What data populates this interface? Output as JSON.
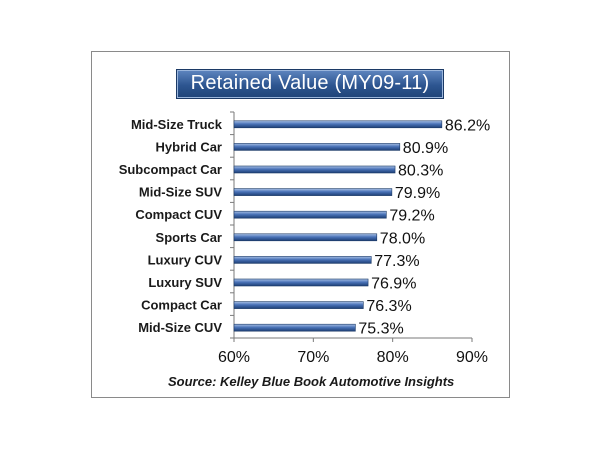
{
  "chart_data": {
    "type": "bar",
    "orientation": "horizontal",
    "title": "Retained Value (MY09-11)",
    "source": "Source: Kelley Blue Book Automotive Insights",
    "categories": [
      "Mid-Size Truck",
      "Hybrid Car",
      "Subcompact Car",
      "Mid-Size SUV",
      "Compact CUV",
      "Sports Car",
      "Luxury CUV",
      "Luxury SUV",
      "Compact Car",
      "Mid-Size CUV"
    ],
    "values": [
      86.2,
      80.9,
      80.3,
      79.9,
      79.2,
      78.0,
      77.3,
      76.9,
      76.3,
      75.3
    ],
    "value_labels": [
      "86.2%",
      "80.9%",
      "80.3%",
      "79.9%",
      "79.2%",
      "78.0%",
      "77.3%",
      "76.9%",
      "76.3%",
      "75.3%"
    ],
    "xlim": [
      60,
      90
    ],
    "xticks": [
      60,
      70,
      80,
      90
    ],
    "xtick_labels": [
      "60%",
      "70%",
      "80%",
      "90%"
    ],
    "grid": false,
    "legend": "none",
    "bar_color": "#4a73b8",
    "title_bg_color": "#2d5590"
  }
}
